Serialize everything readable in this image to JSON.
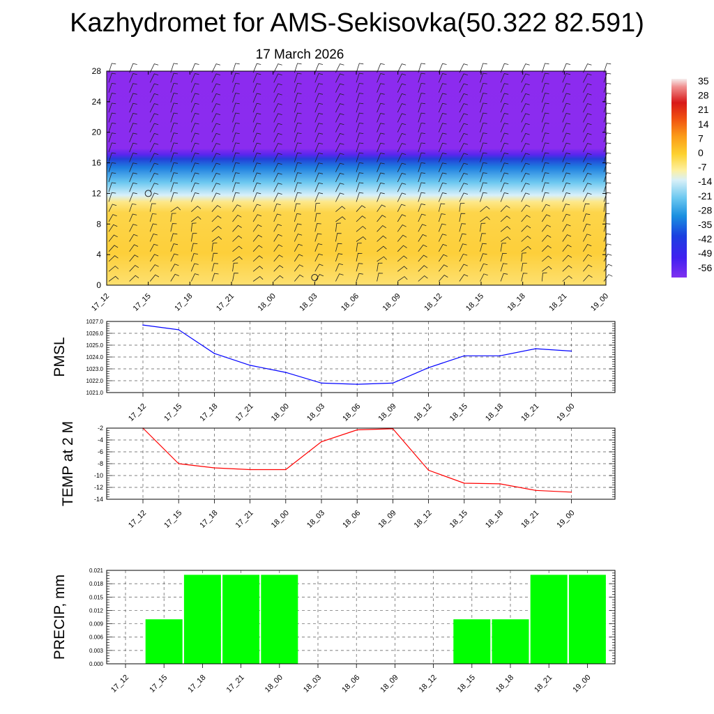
{
  "header": {
    "title": "Kazhydromet for AMS-Sekisovka(50.322 82.591)",
    "date": "17 March 2026"
  },
  "colorbar": {
    "labels": [
      "35",
      "28",
      "21",
      "14",
      "7",
      "0",
      "-7",
      "-14",
      "-21",
      "-28",
      "-35",
      "-42",
      "-49",
      "-56"
    ]
  },
  "time_labels": [
    "17_12",
    "17_15",
    "17_18",
    "17_21",
    "18_00",
    "18_03",
    "18_06",
    "18_09",
    "18_12",
    "18_15",
    "18_18",
    "18_21",
    "19_00"
  ],
  "chart_data": [
    {
      "type": "heatmap",
      "title": "",
      "xlabel": "",
      "ylabel": "",
      "x": [
        "17_12",
        "17_15",
        "17_18",
        "17_21",
        "18_00",
        "18_03",
        "18_06",
        "18_09",
        "18_12",
        "18_15",
        "18_18",
        "18_21",
        "19_00"
      ],
      "y_ticks": [
        0,
        4,
        8,
        12,
        16,
        20,
        24,
        28
      ],
      "ylim": [
        0,
        28
      ],
      "color_range": [
        -56,
        35
      ],
      "markers": [
        {
          "x": "17_15",
          "y": 12
        },
        {
          "x": "18_03",
          "y": 1
        }
      ],
      "note_layers": [
        {
          "y_from": 0,
          "y_to": 10.5,
          "value": -3
        },
        {
          "y_from": 10.5,
          "y_to": 17.5,
          "value": -30
        },
        {
          "y_from": 17.5,
          "y_to": 28,
          "value": -58
        }
      ]
    },
    {
      "type": "line",
      "title": "",
      "ylabel": "PMSL",
      "categories": [
        "17_12",
        "17_15",
        "17_18",
        "17_21",
        "18_00",
        "18_03",
        "18_06",
        "18_09",
        "18_12",
        "18_15",
        "18_18",
        "18_21",
        "19_00"
      ],
      "values": [
        1026.7,
        1026.3,
        1024.3,
        1023.3,
        1022.7,
        1021.8,
        1021.7,
        1021.8,
        1023.1,
        1024.1,
        1024.1,
        1024.7,
        1024.5
      ],
      "ylim": [
        1021.0,
        1027.0
      ],
      "yticks": [
        "1021.0",
        "1022.0",
        "1023.0",
        "1024.0",
        "1025.0",
        "1026.0",
        "1027.0"
      ],
      "color": "#0000ff",
      "grid": true
    },
    {
      "type": "line",
      "title": "",
      "ylabel": "TEMP at 2 M",
      "categories": [
        "17_12",
        "17_15",
        "17_18",
        "17_21",
        "18_00",
        "18_03",
        "18_06",
        "18_09",
        "18_12",
        "18_15",
        "18_18",
        "18_21",
        "19_00"
      ],
      "values": [
        -2.0,
        -8.0,
        -8.7,
        -9.0,
        -9.0,
        -4.3,
        -2.3,
        -2.1,
        -9.1,
        -11.3,
        -11.4,
        -12.5,
        -12.8
      ],
      "ylim": [
        -14,
        -2
      ],
      "yticks": [
        "-14",
        "-12",
        "-10",
        "-8",
        "-6",
        "-4",
        "-2"
      ],
      "color": "#ff0000",
      "grid": true
    },
    {
      "type": "bar",
      "title": "",
      "ylabel": "PRECIP, mm",
      "categories": [
        "17_12",
        "17_15",
        "17_18",
        "17_21",
        "18_00",
        "18_03",
        "18_06",
        "18_09",
        "18_12",
        "18_15",
        "18_18",
        "18_21",
        "19_00"
      ],
      "values": [
        0,
        0.01,
        0.02,
        0.02,
        0.02,
        0,
        0,
        0,
        0,
        0.01,
        0.01,
        0.02,
        0.02
      ],
      "ylim": [
        0,
        0.021
      ],
      "yticks": [
        "0.000",
        "0.003",
        "0.006",
        "0.009",
        "0.012",
        "0.015",
        "0.018",
        "0.021"
      ],
      "color": "#00ff00",
      "grid": true
    }
  ]
}
